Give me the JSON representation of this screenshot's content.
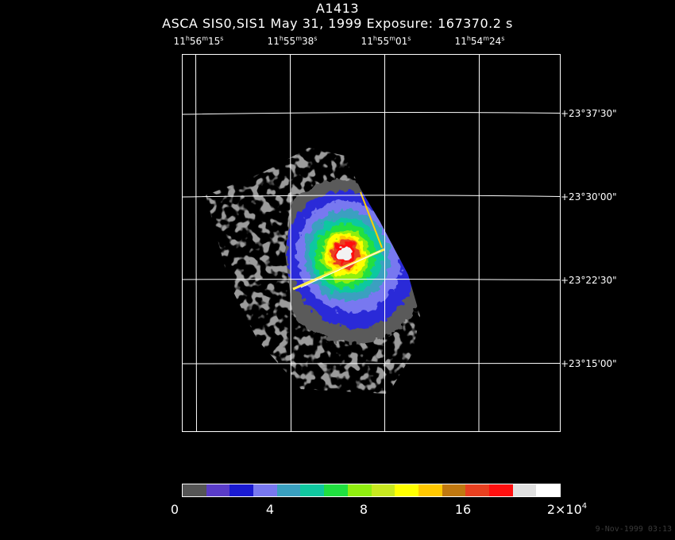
{
  "figure": {
    "title": "A1413",
    "subtitle": "ASCA SIS0,SIS1 May 31, 1999 Exposure: 167370.2 s",
    "footer_date": "9-Nov-1999 03:13"
  },
  "ra_axis": {
    "ticks": [
      {
        "h": "11",
        "m": "56",
        "s": "15"
      },
      {
        "h": "11",
        "m": "55",
        "s": "38"
      },
      {
        "h": "11",
        "m": "55",
        "s": "01"
      },
      {
        "h": "11",
        "m": "54",
        "s": "24"
      }
    ]
  },
  "dec_axis": {
    "ticks": [
      "+23°37'30\"",
      "+23°30'00\"",
      "+23°22'30\"",
      "+23°15'00\""
    ]
  },
  "colorbar": {
    "colors": [
      "#555555",
      "#5a3cc8",
      "#1a1ad2",
      "#7878f0",
      "#3aa0c0",
      "#10c8a0",
      "#20e040",
      "#90ee10",
      "#c8e820",
      "#ffff00",
      "#ffc800",
      "#c07810",
      "#e84020",
      "#ff1010",
      "#e0e0e0",
      "#ffffff"
    ],
    "ticks": [
      {
        "label": "0"
      },
      {
        "label": "4"
      },
      {
        "label": "8"
      },
      {
        "label": "16"
      }
    ],
    "last_tick": {
      "base": "2×10",
      "exp": "4"
    }
  }
}
